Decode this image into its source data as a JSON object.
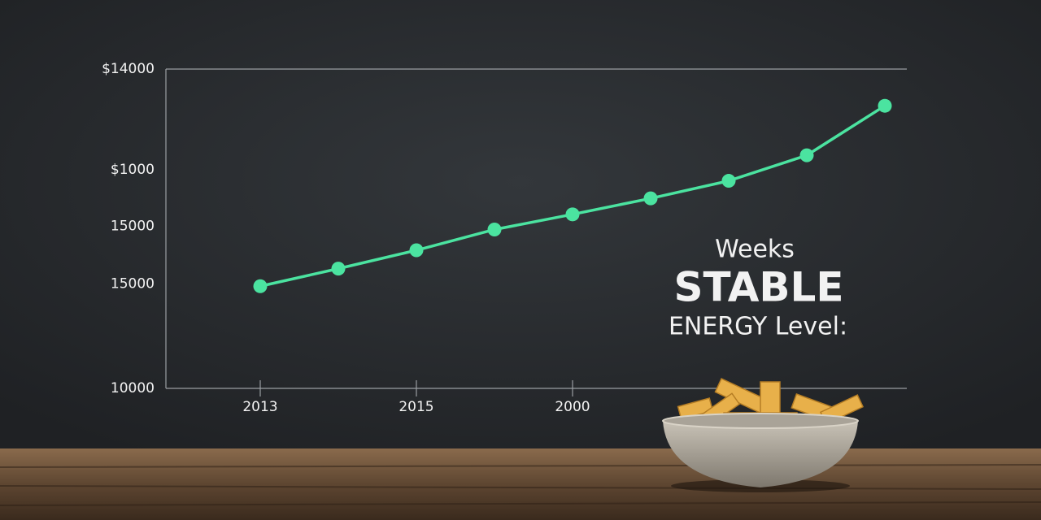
{
  "chart_data": {
    "type": "line",
    "categories": [
      "2013",
      null,
      "2015",
      null,
      "2000",
      null,
      null,
      null,
      null
    ],
    "values": [
      11280,
      11500,
      11730,
      11990,
      12180,
      12380,
      12600,
      12920,
      13540
    ],
    "color": "#4be3a0",
    "ylim": [
      10000,
      14000
    ],
    "yticks": [
      10000,
      {
        "value": 11310,
        "label": "15000"
      },
      {
        "value": 12030,
        "label": "15000"
      },
      {
        "value": 12740,
        "label": "$1000"
      },
      {
        "value": 14000,
        "label": "$14000"
      }
    ],
    "annotations": [
      "Weeks",
      "STABLE",
      "ENERGY Level:"
    ]
  }
}
